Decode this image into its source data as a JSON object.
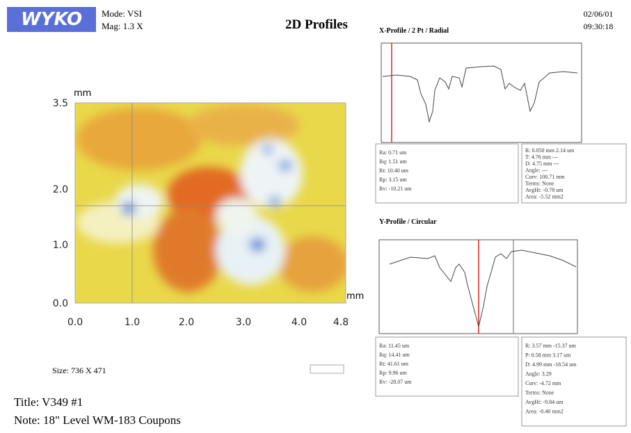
{
  "header": {
    "logo": "WYKO",
    "mode": "Mode: VSI",
    "mag": "Mag: 1.3 X",
    "title": "2D Profiles",
    "date": "02/06/01",
    "time": "09:30:18"
  },
  "image": {
    "y_unit": "mm",
    "x_unit": "mm",
    "y_labels": [
      "3.5",
      "2.0",
      "1.0",
      "0.0"
    ],
    "x_labels": [
      "0.0",
      "1.0",
      "2.0",
      "3.0",
      "4.0",
      "4.8"
    ]
  },
  "size": "Size: 736 X 471",
  "title": "Title: V349 #1",
  "note": "Note: 18\" Level WM-183 Coupons",
  "x_profile": {
    "title": "X-Profile / 2 Pt / Radial",
    "stats_left": [
      "Ra: 0.71 um",
      "Rq: 1.51 um",
      "Rt: 10.40 um",
      "Rp: 3.15 um",
      "Rv: -10.21 um"
    ],
    "stats_right": [
      "R: 0.050 mm  2.14 um",
      "T: 4.76 mm  ---",
      "D: 4.75 mm  ---",
      "Angle: ---",
      "Curv: 108.71 mm",
      "Terms: None",
      "AvgHt: -0.78 um",
      "Area: -5.52 mm2"
    ]
  },
  "y_profile": {
    "title": "Y-Profile / Circular",
    "stats_left": [
      "Ra: 11.45 um",
      "Rq: 14.41 um",
      "Rt: 41.61 um",
      "Rp: 9.96 um",
      "Rv: -28.07 um"
    ],
    "stats_right": [
      "R: 3.57 mm  -15.37 um",
      "P: 0.58 mm  3.17 um",
      "D: 4.99 mm  -18.54 um",
      "Angle: 3.29",
      "Curv: -4.72 mm",
      "Terms: None",
      "AvgHt: -9.84 um",
      "Area: -0.40 mm2"
    ]
  }
}
